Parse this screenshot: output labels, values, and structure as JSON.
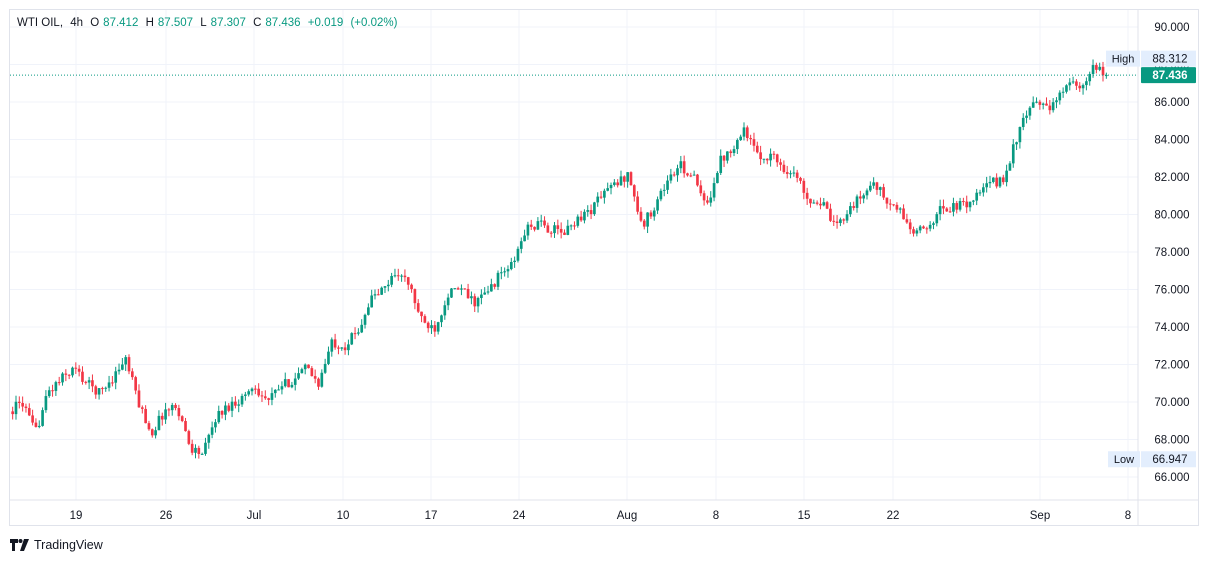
{
  "legend": {
    "symbol": "WTI OIL",
    "interval": "4h",
    "open_label": "O",
    "open": "87.412",
    "high_label": "H",
    "high": "87.507",
    "low_label": "L",
    "low": "87.307",
    "close_label": "C",
    "close": "87.436",
    "change": "+0.019",
    "change_pct": "(+0.02%)"
  },
  "price_labels": {
    "high_tag": "High",
    "high_value": "88.312",
    "low_tag": "Low",
    "low_value": "66.947",
    "last_value": "87.436"
  },
  "branding": {
    "name": "TradingView"
  },
  "colors": {
    "up": "#089981",
    "down": "#f23645",
    "grid": "#f0f3fa",
    "axis_text": "#131722",
    "last_price_bg": "#089981",
    "tag_bg": "#e3eefd"
  },
  "chart_data": {
    "type": "candlestick",
    "title": "WTI OIL, 4h",
    "y_ticks": [
      "66.000",
      "68.000",
      "70.000",
      "72.000",
      "74.000",
      "76.000",
      "78.000",
      "80.000",
      "82.000",
      "84.000",
      "86.000",
      "88.000",
      "90.000"
    ],
    "ylim": [
      65.0,
      90.6
    ],
    "x_ticks": [
      "19",
      "26",
      "Jul",
      "10",
      "17",
      "24",
      "Aug",
      "8",
      "15",
      "22",
      "Sep",
      "8"
    ],
    "grid": true,
    "last_price": 87.436,
    "period_high": 88.312,
    "period_low": 66.947,
    "close_path": [
      {
        "x": "Jun 14",
        "y": 69.5
      },
      {
        "x": "Jun 16",
        "y": 70.0
      },
      {
        "x": "Jun 18",
        "y": 68.3
      },
      {
        "x": "Jun 19",
        "y": 70.5
      },
      {
        "x": "Jun 20",
        "y": 71.2
      },
      {
        "x": "Jun 21",
        "y": 71.8
      },
      {
        "x": "Jun 22",
        "y": 71.0
      },
      {
        "x": "Jun 23",
        "y": 70.5
      },
      {
        "x": "Jun 24",
        "y": 71.3
      },
      {
        "x": "Jun 25",
        "y": 72.3
      },
      {
        "x": "Jun 26",
        "y": 70.0
      },
      {
        "x": "Jun 27",
        "y": 68.3
      },
      {
        "x": "Jun 28",
        "y": 69.5
      },
      {
        "x": "Jun 29",
        "y": 69.8
      },
      {
        "x": "Jun 30",
        "y": 67.6
      },
      {
        "x": "Jul 1",
        "y": 67.2
      },
      {
        "x": "Jul 2",
        "y": 69.2
      },
      {
        "x": "Jul 3",
        "y": 69.8
      },
      {
        "x": "Jul 4",
        "y": 70.2
      },
      {
        "x": "Jul 5",
        "y": 70.9
      },
      {
        "x": "Jul 6",
        "y": 70.0
      },
      {
        "x": "Jul 7",
        "y": 70.8
      },
      {
        "x": "Jul 8",
        "y": 71.2
      },
      {
        "x": "Jul 9",
        "y": 71.8
      },
      {
        "x": "Jul 10",
        "y": 71.0
      },
      {
        "x": "Jul 11",
        "y": 73.2
      },
      {
        "x": "Jul 12",
        "y": 73.0
      },
      {
        "x": "Jul 13",
        "y": 73.8
      },
      {
        "x": "Jul 14",
        "y": 75.5
      },
      {
        "x": "Jul 15",
        "y": 76.0
      },
      {
        "x": "Jul 16",
        "y": 77.0
      },
      {
        "x": "Jul 16.5",
        "y": 76.2
      },
      {
        "x": "Jul 17",
        "y": 74.2
      },
      {
        "x": "Jul 18",
        "y": 74.0
      },
      {
        "x": "Jul 19",
        "y": 75.8
      },
      {
        "x": "Jul 20",
        "y": 76.0
      },
      {
        "x": "Jul 21",
        "y": 75.3
      },
      {
        "x": "Jul 22",
        "y": 75.8
      },
      {
        "x": "Jul 23",
        "y": 76.8
      },
      {
        "x": "Jul 24",
        "y": 77.3
      },
      {
        "x": "Jul 25",
        "y": 79.2
      },
      {
        "x": "Jul 26",
        "y": 79.5
      },
      {
        "x": "Jul 27",
        "y": 79.2
      },
      {
        "x": "Jul 28",
        "y": 79.0
      },
      {
        "x": "Jul 29",
        "y": 79.8
      },
      {
        "x": "Jul 30",
        "y": 80.2
      },
      {
        "x": "Jul 31",
        "y": 81.2
      },
      {
        "x": "Aug 1",
        "y": 81.6
      },
      {
        "x": "Aug 2",
        "y": 82.2
      },
      {
        "x": "Aug 3",
        "y": 79.3
      },
      {
        "x": "Aug 4",
        "y": 80.5
      },
      {
        "x": "Aug 5",
        "y": 81.8
      },
      {
        "x": "Aug 6",
        "y": 82.6
      },
      {
        "x": "Aug 7",
        "y": 82.0
      },
      {
        "x": "Aug 8",
        "y": 80.3
      },
      {
        "x": "Aug 9",
        "y": 82.8
      },
      {
        "x": "Aug 10",
        "y": 83.6
      },
      {
        "x": "Aug 11",
        "y": 84.6
      },
      {
        "x": "Aug 12",
        "y": 83.0
      },
      {
        "x": "Aug 13",
        "y": 83.2
      },
      {
        "x": "Aug 14",
        "y": 82.5
      },
      {
        "x": "Aug 15",
        "y": 82.0
      },
      {
        "x": "Aug 16",
        "y": 80.8
      },
      {
        "x": "Aug 17",
        "y": 80.6
      },
      {
        "x": "Aug 18",
        "y": 79.2
      },
      {
        "x": "Aug 19",
        "y": 80.3
      },
      {
        "x": "Aug 20",
        "y": 80.9
      },
      {
        "x": "Aug 21",
        "y": 81.8
      },
      {
        "x": "Aug 22",
        "y": 80.6
      },
      {
        "x": "Aug 23",
        "y": 80.2
      },
      {
        "x": "Aug 24",
        "y": 79.0
      },
      {
        "x": "Aug 25",
        "y": 79.2
      },
      {
        "x": "Aug 26",
        "y": 80.2
      },
      {
        "x": "Aug 27",
        "y": 80.4
      },
      {
        "x": "Aug 28",
        "y": 80.5
      },
      {
        "x": "Aug 29",
        "y": 81.0
      },
      {
        "x": "Aug 30",
        "y": 81.7
      },
      {
        "x": "Aug 31",
        "y": 81.8
      },
      {
        "x": "Sep 1",
        "y": 84.0
      },
      {
        "x": "Sep 2",
        "y": 85.6
      },
      {
        "x": "Sep 3",
        "y": 86.0
      },
      {
        "x": "Sep 4",
        "y": 85.7
      },
      {
        "x": "Sep 5",
        "y": 87.3
      },
      {
        "x": "Sep 5.5",
        "y": 86.5
      },
      {
        "x": "Sep 6",
        "y": 87.8
      },
      {
        "x": "Sep 6.5",
        "y": 87.44
      }
    ]
  }
}
